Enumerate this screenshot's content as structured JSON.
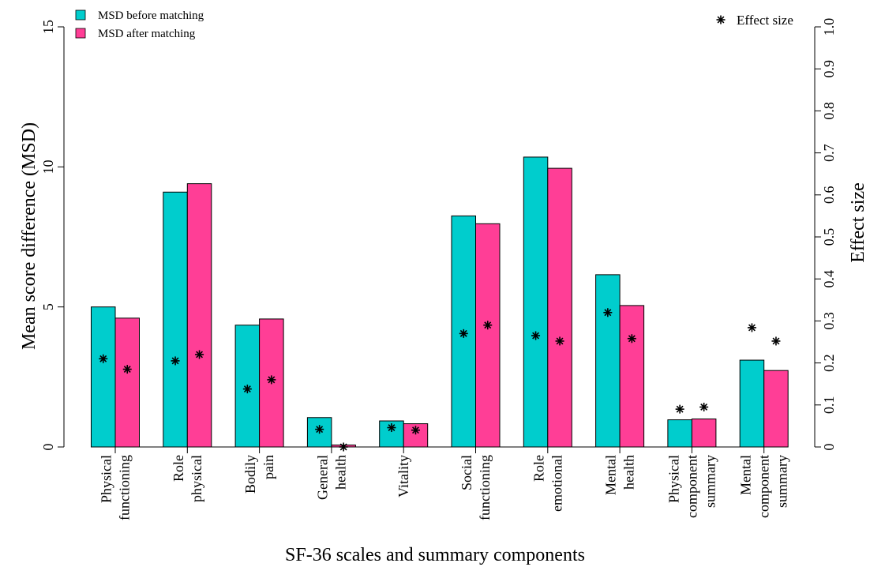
{
  "chart_data": {
    "type": "bar",
    "xlabel": "SF-36 scales and summary components",
    "ylabel": "Mean score difference (MSD)",
    "y2label": "Effect size",
    "ylim": [
      0,
      15
    ],
    "y2lim": [
      0,
      1.0
    ],
    "yticks": [
      "0",
      "5",
      "10",
      "15"
    ],
    "y2ticks": [
      "0",
      "0.1",
      "0.2",
      "0.3",
      "0.4",
      "0.5",
      "0.6",
      "0.7",
      "0.8",
      "0.9",
      "1.0"
    ],
    "legend": {
      "position": "top-left",
      "entries": [
        "MSD before matching",
        "MSD after matching"
      ],
      "effect_entry": "Effect size",
      "effect_position": "top-right"
    },
    "categories": [
      [
        "Physical",
        "functioning"
      ],
      [
        "Role",
        "physical"
      ],
      [
        "Bodily",
        "pain"
      ],
      [
        "General",
        "health"
      ],
      [
        "Vitality"
      ],
      [
        "Social",
        "functioning"
      ],
      [
        "Role",
        "emotional"
      ],
      [
        "Mental",
        "health"
      ],
      [
        "Physical",
        "component",
        "summary"
      ],
      [
        "Mental",
        "component",
        "summary"
      ]
    ],
    "series": [
      {
        "name": "MSD before matching",
        "color": "#00CDCD",
        "values": [
          5.0,
          9.1,
          4.35,
          1.05,
          0.93,
          8.25,
          10.35,
          6.15,
          0.97,
          3.1
        ]
      },
      {
        "name": "MSD after matching",
        "color": "#FF3E96",
        "values": [
          4.6,
          9.4,
          4.57,
          0.07,
          0.83,
          7.97,
          9.95,
          5.05,
          1.0,
          2.73
        ]
      }
    ],
    "effect_size": {
      "before": [
        0.21,
        0.205,
        0.138,
        0.042,
        0.046,
        0.27,
        0.265,
        0.32,
        0.09,
        0.284
      ],
      "after": [
        0.185,
        0.22,
        0.16,
        0.0,
        0.04,
        0.29,
        0.252,
        0.258,
        0.095,
        0.252
      ]
    }
  }
}
